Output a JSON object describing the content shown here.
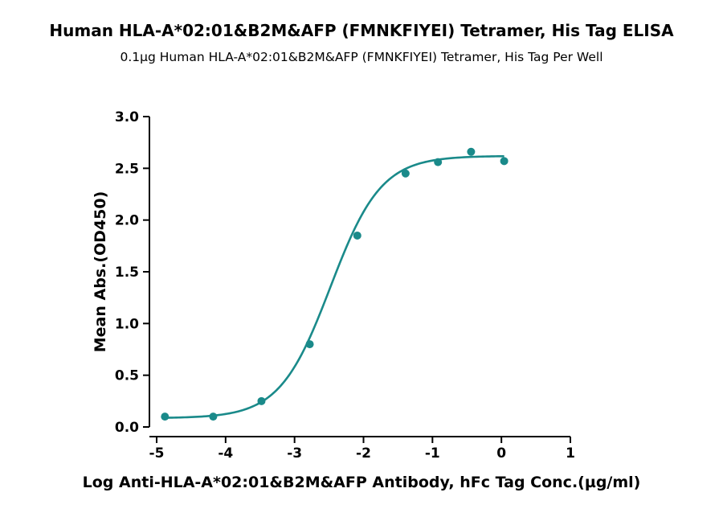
{
  "chart_data": {
    "type": "scatter",
    "title": "Human HLA-A*02:01&B2M&AFP (FMNKFIYEI) Tetramer, His Tag ELISA",
    "subtitle": "0.1µg Human HLA-A*02:01&B2M&AFP (FMNKFIYEI) Tetramer, His Tag Per Well",
    "xlabel": "Log Anti-HLA-A*02:01&B2M&AFP Antibody, hFc Tag Conc.(µg/ml)",
    "ylabel": "Mean Abs.(OD450)",
    "xlim": [
      -5,
      1
    ],
    "ylim": [
      0,
      3.0
    ],
    "x_ticks": [
      -5,
      -4,
      -3,
      -2,
      -1,
      0,
      1
    ],
    "y_ticks": [
      0.0,
      0.5,
      1.0,
      1.5,
      2.0,
      2.5,
      3.0
    ],
    "x_tick_labels": [
      "-5",
      "-4",
      "-3",
      "-2",
      "-1",
      "0",
      "1"
    ],
    "y_tick_labels": [
      "0.0",
      "0.5",
      "1.0",
      "1.5",
      "2.0",
      "2.5",
      "3.0"
    ],
    "grid": false,
    "color": "#1a8a8a",
    "series": [
      {
        "x": [
          -4.88,
          -4.18,
          -3.48,
          -2.78,
          -2.09,
          -1.39,
          -0.92,
          -0.44,
          0.04
        ],
        "y": [
          0.1,
          0.1,
          0.25,
          0.8,
          1.85,
          2.45,
          2.56,
          2.66,
          2.57
        ]
      }
    ],
    "fit": {
      "type": "4PL",
      "x_range": [
        -4.9,
        0.04
      ],
      "bottom": 0.085,
      "top": 2.62,
      "log_ec50": -2.48,
      "hill": 1.18
    }
  }
}
